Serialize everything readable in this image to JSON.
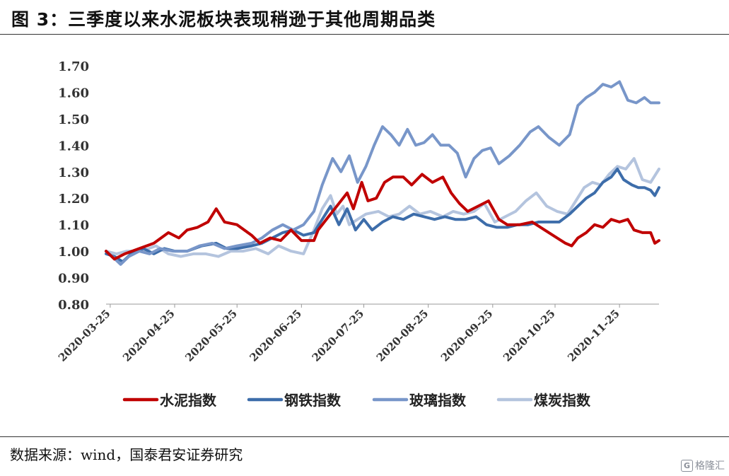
{
  "header": {
    "title": "图 3：三季度以来水泥板块表现稍逊于其他周期品类"
  },
  "footer": {
    "source": "数据来源：wind，国泰君安证券研究",
    "watermark": "格隆汇"
  },
  "chart_data": {
    "type": "line",
    "xlabel": "",
    "ylabel": "",
    "ylim": [
      0.8,
      1.7
    ],
    "yticks": [
      "1.70",
      "1.60",
      "1.50",
      "1.40",
      "1.30",
      "1.20",
      "1.10",
      "1.00",
      "0.90",
      "0.80"
    ],
    "xticks": [
      "2020-03-25",
      "2020-04-25",
      "2020-05-25",
      "2020-06-25",
      "2020-07-25",
      "2020-08-25",
      "2020-09-25",
      "2020-10-25",
      "2020-11-25"
    ],
    "x_range": [
      "2020-03-23",
      "2020-12-14"
    ],
    "legend_position": "bottom",
    "grid": false,
    "series": [
      {
        "name": "水泥指数",
        "color": "#c00000",
        "points": [
          [
            "2020-03-23",
            1.0
          ],
          [
            "2020-03-27",
            0.97
          ],
          [
            "2020-04-01",
            0.99
          ],
          [
            "2020-04-08",
            1.01
          ],
          [
            "2020-04-15",
            1.03
          ],
          [
            "2020-04-22",
            1.07
          ],
          [
            "2020-04-27",
            1.05
          ],
          [
            "2020-05-01",
            1.08
          ],
          [
            "2020-05-06",
            1.09
          ],
          [
            "2020-05-11",
            1.11
          ],
          [
            "2020-05-15",
            1.16
          ],
          [
            "2020-05-19",
            1.11
          ],
          [
            "2020-05-25",
            1.1
          ],
          [
            "2020-06-01",
            1.06
          ],
          [
            "2020-06-05",
            1.03
          ],
          [
            "2020-06-10",
            1.05
          ],
          [
            "2020-06-15",
            1.04
          ],
          [
            "2020-06-20",
            1.08
          ],
          [
            "2020-06-25",
            1.04
          ],
          [
            "2020-07-01",
            1.04
          ],
          [
            "2020-07-03",
            1.08
          ],
          [
            "2020-07-08",
            1.13
          ],
          [
            "2020-07-13",
            1.18
          ],
          [
            "2020-07-17",
            1.22
          ],
          [
            "2020-07-20",
            1.16
          ],
          [
            "2020-07-24",
            1.26
          ],
          [
            "2020-07-27",
            1.19
          ],
          [
            "2020-07-31",
            1.2
          ],
          [
            "2020-08-04",
            1.26
          ],
          [
            "2020-08-08",
            1.28
          ],
          [
            "2020-08-13",
            1.28
          ],
          [
            "2020-08-17",
            1.25
          ],
          [
            "2020-08-22",
            1.29
          ],
          [
            "2020-08-27",
            1.26
          ],
          [
            "2020-09-01",
            1.28
          ],
          [
            "2020-09-05",
            1.22
          ],
          [
            "2020-09-09",
            1.18
          ],
          [
            "2020-09-13",
            1.15
          ],
          [
            "2020-09-18",
            1.17
          ],
          [
            "2020-09-23",
            1.19
          ],
          [
            "2020-09-28",
            1.12
          ],
          [
            "2020-10-02",
            1.1
          ],
          [
            "2020-10-08",
            1.1
          ],
          [
            "2020-10-14",
            1.11
          ],
          [
            "2020-10-20",
            1.08
          ],
          [
            "2020-10-26",
            1.05
          ],
          [
            "2020-10-30",
            1.03
          ],
          [
            "2020-11-02",
            1.02
          ],
          [
            "2020-11-05",
            1.05
          ],
          [
            "2020-11-09",
            1.07
          ],
          [
            "2020-11-13",
            1.1
          ],
          [
            "2020-11-17",
            1.09
          ],
          [
            "2020-11-21",
            1.12
          ],
          [
            "2020-11-25",
            1.11
          ],
          [
            "2020-11-29",
            1.12
          ],
          [
            "2020-12-02",
            1.08
          ],
          [
            "2020-12-06",
            1.07
          ],
          [
            "2020-12-10",
            1.07
          ],
          [
            "2020-12-12",
            1.03
          ],
          [
            "2020-12-14",
            1.04
          ]
        ]
      },
      {
        "name": "钢铁指数",
        "color": "#3d6daa",
        "points": [
          [
            "2020-03-23",
            0.99
          ],
          [
            "2020-03-27",
            0.98
          ],
          [
            "2020-03-31",
            0.96
          ],
          [
            "2020-04-04",
            0.99
          ],
          [
            "2020-04-10",
            1.01
          ],
          [
            "2020-04-15",
            0.99
          ],
          [
            "2020-04-20",
            1.01
          ],
          [
            "2020-04-25",
            1.0
          ],
          [
            "2020-05-01",
            1.0
          ],
          [
            "2020-05-08",
            1.02
          ],
          [
            "2020-05-15",
            1.03
          ],
          [
            "2020-05-20",
            1.01
          ],
          [
            "2020-05-25",
            1.01
          ],
          [
            "2020-06-01",
            1.02
          ],
          [
            "2020-06-06",
            1.03
          ],
          [
            "2020-06-11",
            1.05
          ],
          [
            "2020-06-16",
            1.07
          ],
          [
            "2020-06-21",
            1.08
          ],
          [
            "2020-06-26",
            1.06
          ],
          [
            "2020-07-01",
            1.07
          ],
          [
            "2020-07-05",
            1.12
          ],
          [
            "2020-07-09",
            1.17
          ],
          [
            "2020-07-13",
            1.1
          ],
          [
            "2020-07-17",
            1.16
          ],
          [
            "2020-07-21",
            1.08
          ],
          [
            "2020-07-25",
            1.12
          ],
          [
            "2020-07-29",
            1.08
          ],
          [
            "2020-08-03",
            1.11
          ],
          [
            "2020-08-08",
            1.13
          ],
          [
            "2020-08-13",
            1.12
          ],
          [
            "2020-08-18",
            1.14
          ],
          [
            "2020-08-23",
            1.13
          ],
          [
            "2020-08-28",
            1.12
          ],
          [
            "2020-09-02",
            1.13
          ],
          [
            "2020-09-07",
            1.12
          ],
          [
            "2020-09-12",
            1.12
          ],
          [
            "2020-09-17",
            1.13
          ],
          [
            "2020-09-22",
            1.1
          ],
          [
            "2020-09-27",
            1.09
          ],
          [
            "2020-10-02",
            1.09
          ],
          [
            "2020-10-07",
            1.1
          ],
          [
            "2020-10-12",
            1.1
          ],
          [
            "2020-10-17",
            1.11
          ],
          [
            "2020-10-22",
            1.11
          ],
          [
            "2020-10-27",
            1.11
          ],
          [
            "2020-11-01",
            1.14
          ],
          [
            "2020-11-05",
            1.17
          ],
          [
            "2020-11-09",
            1.2
          ],
          [
            "2020-11-13",
            1.22
          ],
          [
            "2020-11-17",
            1.26
          ],
          [
            "2020-11-21",
            1.28
          ],
          [
            "2020-11-24",
            1.31
          ],
          [
            "2020-11-27",
            1.27
          ],
          [
            "2020-12-01",
            1.25
          ],
          [
            "2020-12-04",
            1.24
          ],
          [
            "2020-12-07",
            1.24
          ],
          [
            "2020-12-10",
            1.23
          ],
          [
            "2020-12-12",
            1.21
          ],
          [
            "2020-12-14",
            1.24
          ]
        ]
      },
      {
        "name": "玻璃指数",
        "color": "#7896c9",
        "points": [
          [
            "2020-03-23",
            1.0
          ],
          [
            "2020-03-26",
            0.98
          ],
          [
            "2020-03-30",
            0.95
          ],
          [
            "2020-04-03",
            0.98
          ],
          [
            "2020-04-08",
            1.0
          ],
          [
            "2020-04-13",
            0.99
          ],
          [
            "2020-04-18",
            1.01
          ],
          [
            "2020-04-24",
            1.0
          ],
          [
            "2020-05-01",
            1.0
          ],
          [
            "2020-05-07",
            1.02
          ],
          [
            "2020-05-13",
            1.03
          ],
          [
            "2020-05-19",
            1.01
          ],
          [
            "2020-05-25",
            1.02
          ],
          [
            "2020-06-01",
            1.03
          ],
          [
            "2020-06-06",
            1.05
          ],
          [
            "2020-06-11",
            1.08
          ],
          [
            "2020-06-16",
            1.1
          ],
          [
            "2020-06-21",
            1.08
          ],
          [
            "2020-06-26",
            1.1
          ],
          [
            "2020-07-01",
            1.15
          ],
          [
            "2020-07-05",
            1.25
          ],
          [
            "2020-07-10",
            1.35
          ],
          [
            "2020-07-14",
            1.3
          ],
          [
            "2020-07-18",
            1.36
          ],
          [
            "2020-07-22",
            1.26
          ],
          [
            "2020-07-26",
            1.32
          ],
          [
            "2020-07-30",
            1.4
          ],
          [
            "2020-08-03",
            1.47
          ],
          [
            "2020-08-07",
            1.44
          ],
          [
            "2020-08-11",
            1.4
          ],
          [
            "2020-08-15",
            1.46
          ],
          [
            "2020-08-19",
            1.4
          ],
          [
            "2020-08-23",
            1.41
          ],
          [
            "2020-08-27",
            1.44
          ],
          [
            "2020-08-31",
            1.4
          ],
          [
            "2020-09-04",
            1.4
          ],
          [
            "2020-09-08",
            1.37
          ],
          [
            "2020-09-12",
            1.28
          ],
          [
            "2020-09-16",
            1.35
          ],
          [
            "2020-09-20",
            1.38
          ],
          [
            "2020-09-24",
            1.39
          ],
          [
            "2020-09-28",
            1.33
          ],
          [
            "2020-10-03",
            1.36
          ],
          [
            "2020-10-08",
            1.4
          ],
          [
            "2020-10-13",
            1.45
          ],
          [
            "2020-10-17",
            1.47
          ],
          [
            "2020-10-22",
            1.43
          ],
          [
            "2020-10-27",
            1.4
          ],
          [
            "2020-11-01",
            1.44
          ],
          [
            "2020-11-05",
            1.55
          ],
          [
            "2020-11-09",
            1.58
          ],
          [
            "2020-11-13",
            1.6
          ],
          [
            "2020-11-17",
            1.63
          ],
          [
            "2020-11-21",
            1.62
          ],
          [
            "2020-11-25",
            1.64
          ],
          [
            "2020-11-29",
            1.57
          ],
          [
            "2020-12-03",
            1.56
          ],
          [
            "2020-12-07",
            1.58
          ],
          [
            "2020-12-10",
            1.56
          ],
          [
            "2020-12-14",
            1.56
          ]
        ]
      },
      {
        "name": "煤炭指数",
        "color": "#b4c4de",
        "points": [
          [
            "2020-03-23",
            1.0
          ],
          [
            "2020-03-28",
            0.99
          ],
          [
            "2020-04-02",
            1.0
          ],
          [
            "2020-04-09",
            1.0
          ],
          [
            "2020-04-16",
            1.02
          ],
          [
            "2020-04-22",
            0.99
          ],
          [
            "2020-04-28",
            0.98
          ],
          [
            "2020-05-04",
            0.99
          ],
          [
            "2020-05-10",
            0.99
          ],
          [
            "2020-05-16",
            0.98
          ],
          [
            "2020-05-22",
            1.0
          ],
          [
            "2020-05-28",
            1.0
          ],
          [
            "2020-06-03",
            1.01
          ],
          [
            "2020-06-09",
            0.99
          ],
          [
            "2020-06-14",
            1.02
          ],
          [
            "2020-06-20",
            1.0
          ],
          [
            "2020-06-26",
            0.99
          ],
          [
            "2020-07-01",
            1.08
          ],
          [
            "2020-07-05",
            1.16
          ],
          [
            "2020-07-09",
            1.21
          ],
          [
            "2020-07-12",
            1.14
          ],
          [
            "2020-07-15",
            1.17
          ],
          [
            "2020-07-18",
            1.1
          ],
          [
            "2020-07-22",
            1.12
          ],
          [
            "2020-07-26",
            1.14
          ],
          [
            "2020-08-01",
            1.15
          ],
          [
            "2020-08-06",
            1.13
          ],
          [
            "2020-08-11",
            1.14
          ],
          [
            "2020-08-16",
            1.17
          ],
          [
            "2020-08-21",
            1.14
          ],
          [
            "2020-08-26",
            1.15
          ],
          [
            "2020-09-01",
            1.13
          ],
          [
            "2020-09-06",
            1.15
          ],
          [
            "2020-09-11",
            1.14
          ],
          [
            "2020-09-16",
            1.15
          ],
          [
            "2020-09-21",
            1.18
          ],
          [
            "2020-09-26",
            1.11
          ],
          [
            "2020-10-01",
            1.13
          ],
          [
            "2020-10-06",
            1.15
          ],
          [
            "2020-10-11",
            1.19
          ],
          [
            "2020-10-16",
            1.22
          ],
          [
            "2020-10-21",
            1.17
          ],
          [
            "2020-10-26",
            1.15
          ],
          [
            "2020-10-31",
            1.14
          ],
          [
            "2020-11-04",
            1.19
          ],
          [
            "2020-11-08",
            1.24
          ],
          [
            "2020-11-12",
            1.26
          ],
          [
            "2020-11-16",
            1.25
          ],
          [
            "2020-11-20",
            1.29
          ],
          [
            "2020-11-24",
            1.32
          ],
          [
            "2020-11-28",
            1.31
          ],
          [
            "2020-12-02",
            1.35
          ],
          [
            "2020-12-06",
            1.27
          ],
          [
            "2020-12-10",
            1.26
          ],
          [
            "2020-12-14",
            1.31
          ]
        ]
      }
    ]
  }
}
